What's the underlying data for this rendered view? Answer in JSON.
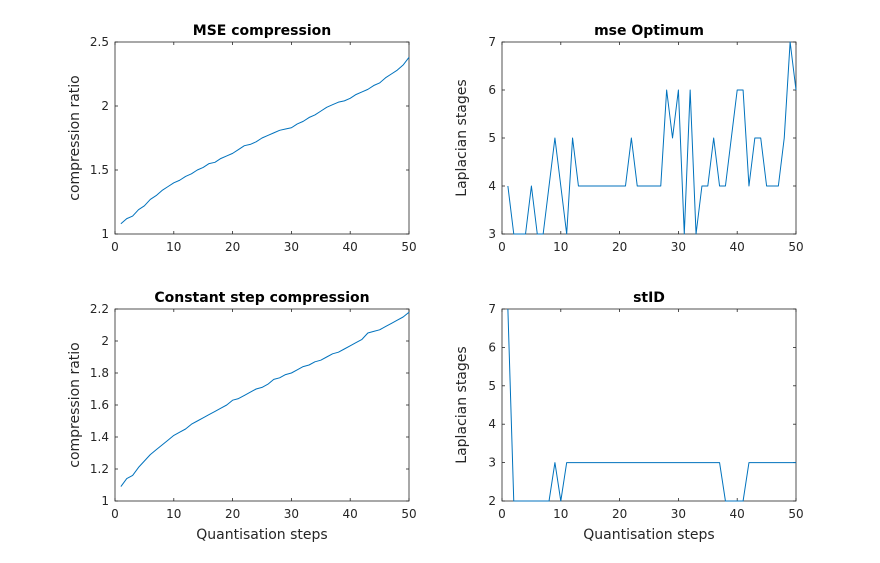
{
  "figure": {
    "line_color": "#0072bd",
    "axis_color": "#262626"
  },
  "chart_data": [
    {
      "type": "line",
      "title": "MSE compression",
      "xlabel": "",
      "ylabel": "compression ratio",
      "xlim": [
        0,
        50
      ],
      "ylim": [
        1,
        2.5
      ],
      "xticks": [
        0,
        10,
        20,
        30,
        40,
        50
      ],
      "xtick_labels": [
        "0",
        "10",
        "20",
        "30",
        "40",
        "50"
      ],
      "yticks": [
        1,
        1.5,
        2,
        2.5
      ],
      "ytick_labels": [
        "1",
        "1.5",
        "2",
        "2.5"
      ],
      "grid": false,
      "series": [
        {
          "x": [
            1,
            2,
            3,
            4,
            5,
            6,
            7,
            8,
            9,
            10,
            11,
            12,
            13,
            14,
            15,
            16,
            17,
            18,
            19,
            20,
            21,
            22,
            23,
            24,
            25,
            26,
            27,
            28,
            29,
            30,
            31,
            32,
            33,
            34,
            35,
            36,
            37,
            38,
            39,
            40,
            41,
            42,
            43,
            44,
            45,
            46,
            47,
            48,
            49,
            50
          ],
          "values": [
            1.08,
            1.12,
            1.14,
            1.19,
            1.22,
            1.27,
            1.3,
            1.34,
            1.37,
            1.4,
            1.42,
            1.45,
            1.47,
            1.5,
            1.52,
            1.55,
            1.56,
            1.59,
            1.61,
            1.63,
            1.66,
            1.69,
            1.7,
            1.72,
            1.75,
            1.77,
            1.79,
            1.81,
            1.82,
            1.83,
            1.86,
            1.88,
            1.91,
            1.93,
            1.96,
            1.99,
            2.01,
            2.03,
            2.04,
            2.06,
            2.09,
            2.11,
            2.13,
            2.16,
            2.18,
            2.22,
            2.25,
            2.28,
            2.32,
            2.38
          ]
        }
      ]
    },
    {
      "type": "line",
      "title": "mse Optimum",
      "xlabel": "",
      "ylabel": "Laplacian stages",
      "xlim": [
        0,
        50
      ],
      "ylim": [
        3,
        7
      ],
      "xticks": [
        0,
        10,
        20,
        30,
        40,
        50
      ],
      "xtick_labels": [
        "0",
        "10",
        "20",
        "30",
        "40",
        "50"
      ],
      "yticks": [
        3,
        4,
        5,
        6,
        7
      ],
      "ytick_labels": [
        "3",
        "4",
        "5",
        "6",
        "7"
      ],
      "grid": false,
      "series": [
        {
          "x": [
            1,
            2,
            3,
            4,
            5,
            6,
            7,
            8,
            9,
            10,
            11,
            12,
            13,
            14,
            15,
            16,
            17,
            18,
            19,
            20,
            21,
            22,
            23,
            24,
            25,
            26,
            27,
            28,
            29,
            30,
            31,
            32,
            33,
            34,
            35,
            36,
            37,
            38,
            39,
            40,
            41,
            42,
            43,
            44,
            45,
            46,
            47,
            48,
            49,
            50
          ],
          "values": [
            4,
            3,
            3,
            3,
            4,
            3,
            3,
            4,
            5,
            4,
            3,
            5,
            4,
            4,
            4,
            4,
            4,
            4,
            4,
            4,
            4,
            5,
            4,
            4,
            4,
            4,
            4,
            6,
            5,
            6,
            3,
            6,
            3,
            4,
            4,
            5,
            4,
            4,
            5,
            6,
            6,
            4,
            5,
            5,
            4,
            4,
            4,
            5,
            7,
            6
          ]
        }
      ]
    },
    {
      "type": "line",
      "title": "Constant step compression",
      "xlabel": "Quantisation steps",
      "ylabel": "compression ratio",
      "xlim": [
        0,
        50
      ],
      "ylim": [
        1,
        2.2
      ],
      "xticks": [
        0,
        10,
        20,
        30,
        40,
        50
      ],
      "xtick_labels": [
        "0",
        "10",
        "20",
        "30",
        "40",
        "50"
      ],
      "yticks": [
        1,
        1.2,
        1.4,
        1.6,
        1.8,
        2,
        2.2
      ],
      "ytick_labels": [
        "1",
        "1.2",
        "1.4",
        "1.6",
        "1.8",
        "2",
        "2.2"
      ],
      "grid": false,
      "series": [
        {
          "x": [
            1,
            2,
            3,
            4,
            5,
            6,
            7,
            8,
            9,
            10,
            11,
            12,
            13,
            14,
            15,
            16,
            17,
            18,
            19,
            20,
            21,
            22,
            23,
            24,
            25,
            26,
            27,
            28,
            29,
            30,
            31,
            32,
            33,
            34,
            35,
            36,
            37,
            38,
            39,
            40,
            41,
            42,
            43,
            44,
            45,
            46,
            47,
            48,
            49,
            50
          ],
          "values": [
            1.09,
            1.14,
            1.16,
            1.21,
            1.25,
            1.29,
            1.32,
            1.35,
            1.38,
            1.41,
            1.43,
            1.45,
            1.48,
            1.5,
            1.52,
            1.54,
            1.56,
            1.58,
            1.6,
            1.63,
            1.64,
            1.66,
            1.68,
            1.7,
            1.71,
            1.73,
            1.76,
            1.77,
            1.79,
            1.8,
            1.82,
            1.84,
            1.85,
            1.87,
            1.88,
            1.9,
            1.92,
            1.93,
            1.95,
            1.97,
            1.99,
            2.01,
            2.05,
            2.06,
            2.07,
            2.09,
            2.11,
            2.13,
            2.15,
            2.18
          ]
        }
      ]
    },
    {
      "type": "line",
      "title": "stID",
      "xlabel": "Quantisation steps",
      "ylabel": "Laplacian stages",
      "xlim": [
        0,
        50
      ],
      "ylim": [
        2,
        7
      ],
      "xticks": [
        0,
        10,
        20,
        30,
        40,
        50
      ],
      "xtick_labels": [
        "0",
        "10",
        "20",
        "30",
        "40",
        "50"
      ],
      "yticks": [
        2,
        3,
        4,
        5,
        6,
        7
      ],
      "ytick_labels": [
        "2",
        "3",
        "4",
        "5",
        "6",
        "7"
      ],
      "grid": false,
      "series": [
        {
          "x": [
            1,
            2,
            3,
            4,
            5,
            6,
            7,
            8,
            9,
            10,
            11,
            12,
            13,
            14,
            15,
            16,
            17,
            18,
            19,
            20,
            21,
            22,
            23,
            24,
            25,
            26,
            27,
            28,
            29,
            30,
            31,
            32,
            33,
            34,
            35,
            36,
            37,
            38,
            39,
            40,
            41,
            42,
            43,
            44,
            45,
            46,
            47,
            48,
            49,
            50
          ],
          "values": [
            7,
            2,
            2,
            2,
            2,
            2,
            2,
            2,
            3,
            2,
            3,
            3,
            3,
            3,
            3,
            3,
            3,
            3,
            3,
            3,
            3,
            3,
            3,
            3,
            3,
            3,
            3,
            3,
            3,
            3,
            3,
            3,
            3,
            3,
            3,
            3,
            3,
            2,
            2,
            2,
            2,
            3,
            3,
            3,
            3,
            3,
            3,
            3,
            3,
            3
          ]
        }
      ]
    }
  ]
}
